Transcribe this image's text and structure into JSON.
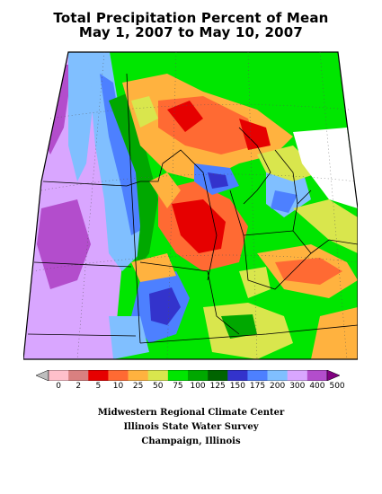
{
  "title": {
    "line1": "Total Precipitation Percent of Mean",
    "line2": "May 1, 2007 to May 10, 2007"
  },
  "legend": {
    "labels": [
      "0",
      "2",
      "5",
      "10",
      "25",
      "50",
      "75",
      "100",
      "125",
      "150",
      "175",
      "200",
      "300",
      "400",
      "500"
    ],
    "colors": [
      "#bebebe",
      "#ffc0cb",
      "#d98080",
      "#e60000",
      "#ff6a33",
      "#ffb23f",
      "#d9e64d",
      "#00e600",
      "#00a800",
      "#006400",
      "#3333cc",
      "#4d80ff",
      "#80bfff",
      "#d9a6ff",
      "#b34dcc",
      "#800080"
    ]
  },
  "credits": {
    "line1": "Midwestern Regional Climate Center",
    "line2": "Illinois State Water Survey",
    "line3": "Champaign, Illinois"
  }
}
